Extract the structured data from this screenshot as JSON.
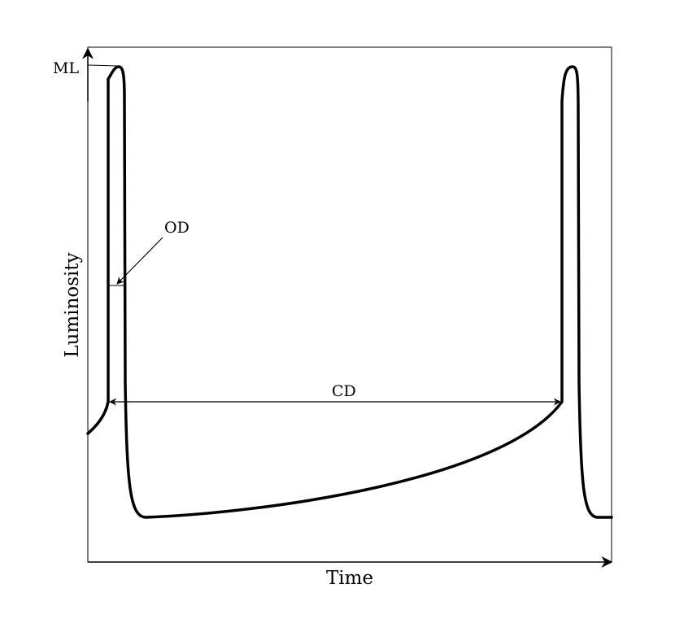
{
  "diagram": {
    "xlabel": "Time",
    "ylabel": "Luminosity",
    "annotations": {
      "ml": "ML",
      "od": "OD",
      "cd": "CD"
    }
  },
  "colors": {
    "ink": "#000000",
    "background": "#ffffff"
  }
}
